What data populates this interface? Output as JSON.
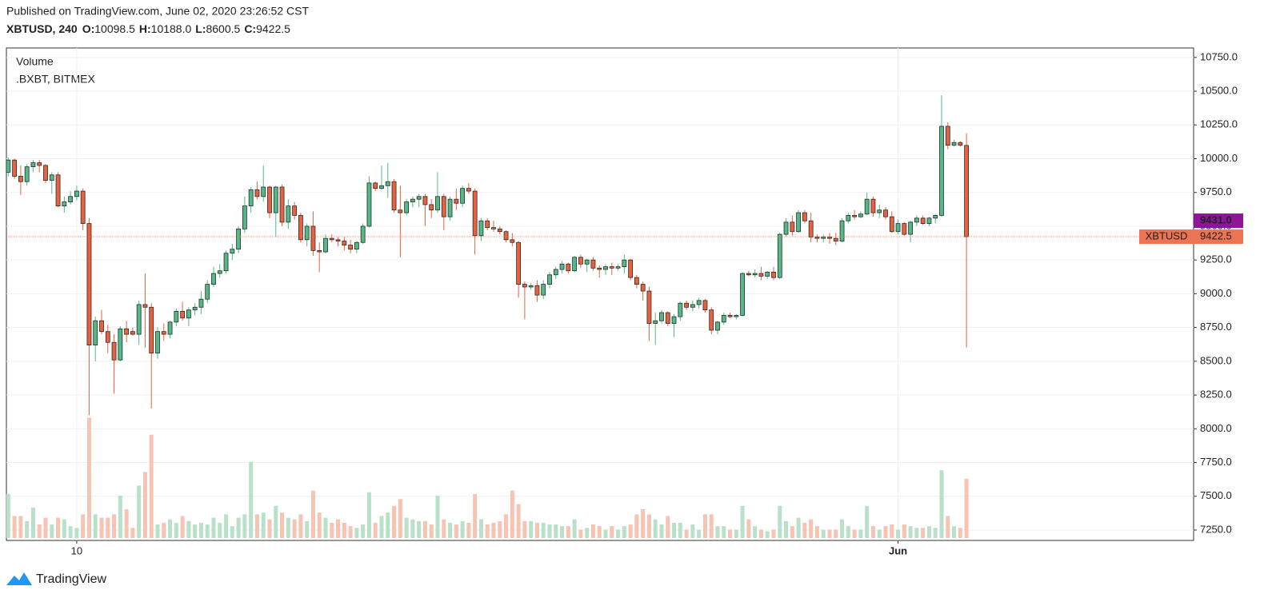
{
  "header": {
    "published": "Published on TradingView.com, June 02, 2020 23:26:52 CST",
    "symbol": "XBTUSD, 240",
    "ohlc": [
      {
        "key": "O:",
        "value": "10098.5"
      },
      {
        "key": "H:",
        "value": "10188.0"
      },
      {
        "key": "L:",
        "value": "8600.5"
      },
      {
        "key": "C:",
        "value": "9422.5"
      }
    ]
  },
  "chart_data": {
    "type": "candlestick",
    "legend": [
      "Volume",
      ".BXBT, BITMEX"
    ],
    "open": [
      9900,
      9990,
      9870,
      9830,
      9940,
      9970,
      9950,
      9840,
      9880,
      9650,
      9680,
      9720,
      9760,
      9520,
      8620,
      8800,
      8720,
      8640,
      8510,
      8740,
      8720,
      8700,
      8920,
      8900,
      8560,
      8720,
      8700,
      8790,
      8870,
      8820,
      8880,
      8900,
      8960,
      9070,
      9150,
      9170,
      9300,
      9330,
      9480,
      9650,
      9770,
      9720,
      9790,
      9600,
      9790,
      9530,
      9650,
      9580,
      9400,
      9500,
      9320,
      9310,
      9410,
      9400,
      9390,
      9360,
      9330,
      9380,
      9500,
      9820,
      9780,
      9800,
      9830,
      9620,
      9600,
      9680,
      9700,
      9720,
      9660,
      9620,
      9720,
      9570,
      9700,
      9670,
      9780,
      9760,
      9430,
      9540,
      9490,
      9480,
      9460,
      9400,
      9380,
      9070,
      9050,
      9060,
      8990,
      9070,
      9140,
      9180,
      9220,
      9170,
      9270,
      9220,
      9250,
      9190,
      9180,
      9200,
      9190,
      9200,
      9250,
      9120,
      9070,
      9020,
      8780,
      8800,
      8860,
      8780,
      8830,
      8930,
      8900,
      8920,
      8950,
      8880,
      8730,
      8790,
      8840,
      8830,
      8840,
      9150,
      9140,
      9150,
      9130,
      9160,
      9120,
      9440,
      9530,
      9460,
      9600,
      9540,
      9420,
      9410,
      9420,
      9410,
      9390,
      9540,
      9580,
      9570,
      9590,
      9700,
      9600,
      9620,
      9570,
      9460,
      9520,
      9440,
      9530,
      9560,
      9520,
      9560,
      9580,
      10240,
      10100,
      10120,
      10098.5
    ],
    "high": [
      10010,
      10000,
      9950,
      9960,
      9990,
      9990,
      9960,
      9900,
      9900,
      9720,
      9760,
      9800,
      9780,
      9560,
      8830,
      8880,
      8770,
      8700,
      8760,
      8800,
      8750,
      8950,
      9150,
      8930,
      8750,
      8780,
      8800,
      8890,
      8940,
      8900,
      8930,
      9020,
      9100,
      9200,
      9220,
      9320,
      9370,
      9500,
      9720,
      9790,
      9830,
      9950,
      9800,
      9800,
      9810,
      9700,
      9680,
      9600,
      9520,
      9610,
      9380,
      9440,
      9440,
      9420,
      9420,
      9400,
      9390,
      9520,
      9870,
      9830,
      9950,
      9970,
      9850,
      9800,
      9700,
      9720,
      9740,
      9740,
      9700,
      9900,
      9740,
      9720,
      9780,
      9800,
      9820,
      9780,
      9560,
      9560,
      9540,
      9500,
      9470,
      9450,
      9390,
      9090,
      9080,
      9100,
      9100,
      9160,
      9200,
      9240,
      9230,
      9280,
      9290,
      9260,
      9270,
      9210,
      9220,
      9230,
      9220,
      9290,
      9260,
      9140,
      9090,
      9050,
      8860,
      8880,
      8870,
      8850,
      8940,
      8950,
      8950,
      8970,
      8960,
      8900,
      8800,
      8860,
      8860,
      8850,
      9160,
      9170,
      9180,
      9200,
      9170,
      9200,
      9450,
      9560,
      9580,
      9620,
      9620,
      9600,
      9440,
      9440,
      9450,
      9450,
      9560,
      9600,
      9620,
      9610,
      9750,
      9720,
      9660,
      9640,
      9610,
      9550,
      9530,
      9540,
      9580,
      9580,
      9570,
      9590,
      10470,
      10270,
      10140,
      10130,
      10188
    ],
    "low": [
      9870,
      9850,
      9730,
      9800,
      9900,
      9900,
      9820,
      9740,
      9640,
      9600,
      9660,
      9690,
      9470,
      8100,
      8500,
      8700,
      8560,
      8260,
      8500,
      8640,
      8690,
      8620,
      8600,
      8150,
      8520,
      8650,
      8670,
      8760,
      8800,
      8760,
      8840,
      8850,
      8930,
      9050,
      9120,
      9150,
      9250,
      9300,
      9450,
      9600,
      9700,
      9680,
      9560,
      9420,
      9500,
      9480,
      9550,
      9380,
      9350,
      9280,
      9160,
      9300,
      9380,
      9350,
      9320,
      9300,
      9300,
      9370,
      9490,
      9760,
      9770,
      9710,
      9600,
      9270,
      9580,
      9640,
      9640,
      9500,
      9560,
      9600,
      9470,
      9540,
      9620,
      9640,
      9740,
      9290,
      9390,
      9470,
      9460,
      9440,
      9380,
      9350,
      8970,
      8810,
      9030,
      8940,
      8960,
      9040,
      9110,
      9150,
      9150,
      9160,
      9190,
      9160,
      9170,
      9120,
      9140,
      9140,
      9170,
      9150,
      9100,
      9040,
      8950,
      8650,
      8620,
      8780,
      8760,
      8680,
      8800,
      8880,
      8870,
      8890,
      8860,
      8700,
      8700,
      8770,
      8820,
      8810,
      8830,
      9130,
      9120,
      9100,
      9110,
      9100,
      9110,
      9420,
      9430,
      9450,
      9520,
      9380,
      9380,
      9380,
      9370,
      9360,
      9380,
      9520,
      9550,
      9560,
      9580,
      9570,
      9560,
      9550,
      9450,
      9440,
      9430,
      9380,
      9500,
      9510,
      9500,
      9520,
      9570,
      10070,
      10090,
      10090,
      8600.5
    ],
    "close": [
      9990,
      9870,
      9830,
      9940,
      9970,
      9950,
      9840,
      9880,
      9650,
      9680,
      9720,
      9760,
      9520,
      8620,
      8800,
      8720,
      8640,
      8510,
      8740,
      8700,
      8700,
      8920,
      8900,
      8560,
      8720,
      8700,
      8790,
      8870,
      8820,
      8880,
      8900,
      8960,
      9070,
      9150,
      9170,
      9300,
      9330,
      9480,
      9650,
      9770,
      9720,
      9790,
      9600,
      9790,
      9530,
      9650,
      9580,
      9400,
      9500,
      9320,
      9310,
      9410,
      9400,
      9390,
      9360,
      9330,
      9380,
      9500,
      9820,
      9780,
      9800,
      9830,
      9620,
      9600,
      9680,
      9700,
      9720,
      9660,
      9620,
      9720,
      9570,
      9700,
      9670,
      9780,
      9760,
      9430,
      9540,
      9490,
      9480,
      9460,
      9400,
      9380,
      9070,
      9050,
      9060,
      8990,
      9070,
      9140,
      9180,
      9220,
      9170,
      9270,
      9220,
      9250,
      9190,
      9180,
      9200,
      9190,
      9200,
      9250,
      9120,
      9070,
      9020,
      8780,
      8800,
      8860,
      8780,
      8830,
      8930,
      8900,
      8920,
      8950,
      8880,
      8730,
      8790,
      8840,
      8830,
      8840,
      9150,
      9140,
      9150,
      9130,
      9160,
      9120,
      9440,
      9530,
      9460,
      9600,
      9540,
      9420,
      9410,
      9420,
      9410,
      9390,
      9540,
      9580,
      9570,
      9590,
      9700,
      9600,
      9620,
      9570,
      9460,
      9520,
      9440,
      9530,
      9560,
      9520,
      9560,
      9580,
      10240,
      10100,
      10120,
      10100,
      9422.5
    ],
    "volume": [
      26,
      13,
      13,
      10,
      18,
      8,
      12,
      8,
      12,
      11,
      7,
      6,
      14,
      71,
      14,
      12,
      12,
      14,
      25,
      17,
      6,
      31,
      39,
      61,
      8,
      9,
      11,
      9,
      13,
      10,
      8,
      9,
      8,
      12,
      9,
      14,
      7,
      12,
      14,
      45,
      14,
      15,
      11,
      19,
      15,
      12,
      11,
      14,
      10,
      28,
      15,
      12,
      9,
      11,
      9,
      7,
      6,
      8,
      27,
      9,
      13,
      15,
      19,
      23,
      12,
      11,
      10,
      10,
      8,
      25,
      11,
      9,
      8,
      10,
      9,
      26,
      11,
      8,
      9,
      10,
      14,
      28,
      20,
      10,
      10,
      9,
      9,
      8,
      8,
      7,
      7,
      11,
      5,
      6,
      8,
      7,
      5,
      7,
      5,
      7,
      8,
      14,
      17,
      14,
      11,
      8,
      13,
      9,
      9,
      5,
      8,
      5,
      14,
      14,
      7,
      7,
      5,
      5,
      19,
      11,
      7,
      5,
      4,
      5,
      19,
      10,
      7,
      12,
      9,
      11,
      7,
      5,
      5,
      5,
      11,
      7,
      5,
      5,
      19,
      7,
      5,
      7,
      8,
      5,
      8,
      7,
      6,
      6,
      7,
      6,
      40,
      13,
      7,
      6,
      35
    ],
    "up_color": "#53b987",
    "down_color": "#e8623f",
    "volume_up_color": "#b9e1c9",
    "volume_down_color": "#f7c3b3",
    "xlim": [
      -0.3,
      190.5
    ],
    "xticks": [
      {
        "value": 11,
        "label": "10"
      },
      {
        "value": 143,
        "label": "Jun"
      }
    ],
    "ylim": [
      7173,
      10820
    ],
    "yticks": [
      {
        "value": 7250,
        "label": "7250.0"
      },
      {
        "value": 7500,
        "label": "7500.0"
      },
      {
        "value": 7750,
        "label": "7750.0"
      },
      {
        "value": 8000,
        "label": "8000.0"
      },
      {
        "value": 8250,
        "label": "8250.0"
      },
      {
        "value": 8500,
        "label": "8500.0"
      },
      {
        "value": 8750,
        "label": "8750.0"
      },
      {
        "value": 9000,
        "label": "9000.0"
      },
      {
        "value": 9250,
        "label": "9250.0"
      },
      {
        "value": 9500,
        "label": "9500.0"
      },
      {
        "value": 9750,
        "label": "9750.0"
      },
      {
        "value": 10000,
        "label": "10000.0"
      },
      {
        "value": 10250,
        "label": "10250.0"
      },
      {
        "value": 10500,
        "label": "10500.0"
      },
      {
        "value": 10750,
        "label": "10750.0"
      }
    ],
    "volume_lim": [
      0,
      100
    ],
    "grid": true,
    "price_line": {
      "label": "XBTUSD",
      "value": 9422.5,
      "value_label": "9422.5",
      "color": "#ec7353"
    },
    "ma_tag": {
      "value": 9431,
      "value_label": "9431.0",
      "color": "#8e1599"
    }
  },
  "footer": {
    "brand": "TradingView"
  }
}
